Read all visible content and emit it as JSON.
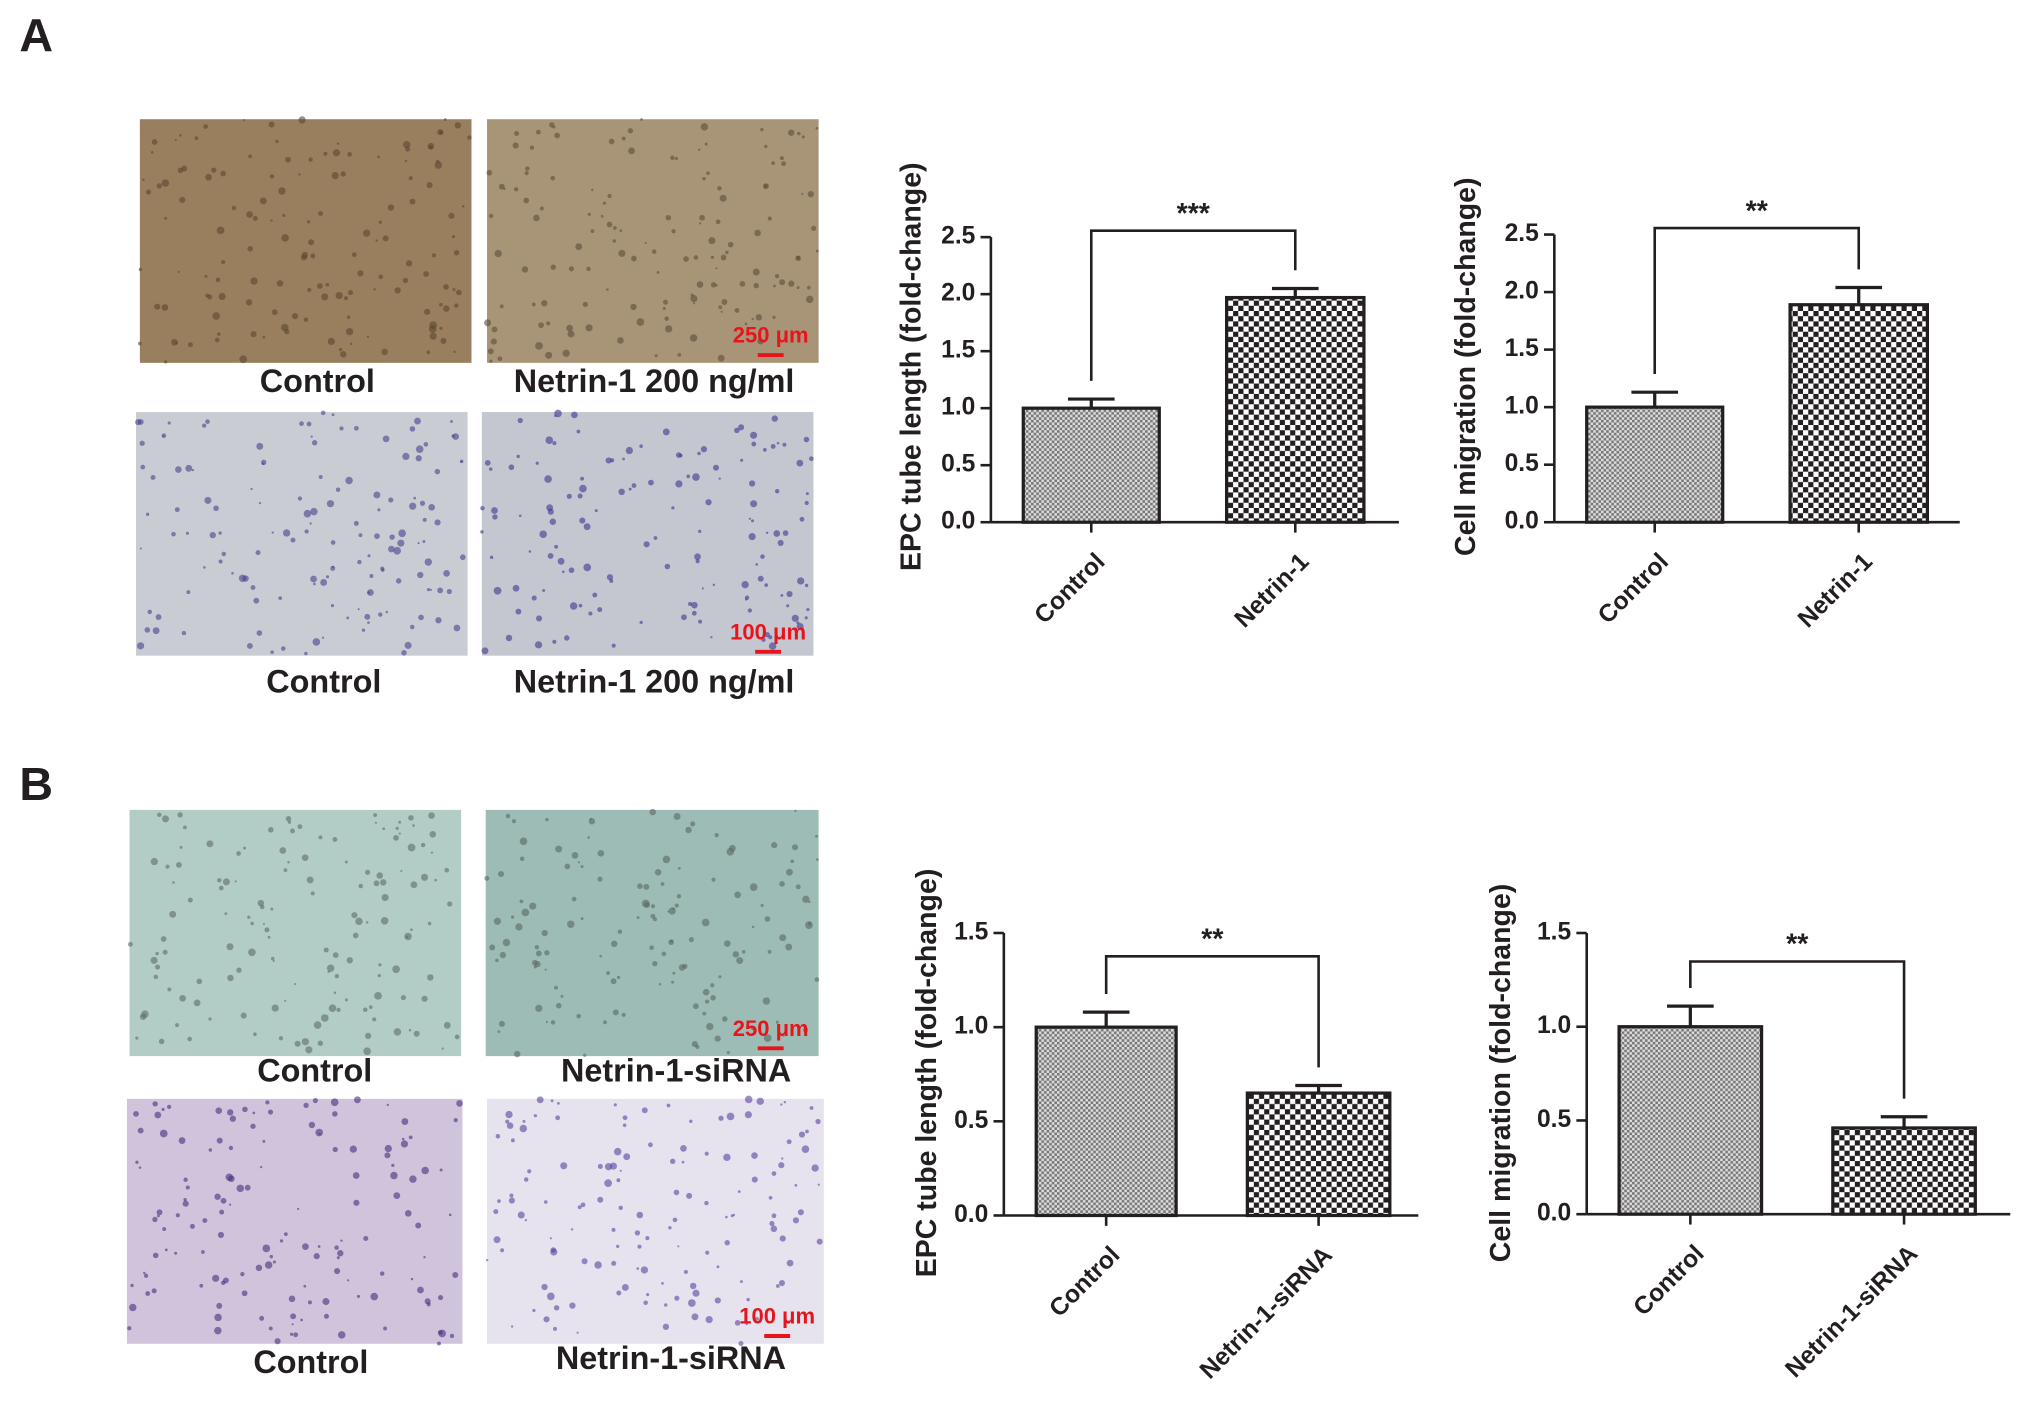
{
  "panel_labels": [
    "A",
    "B"
  ],
  "image_captions": [
    "Control",
    "Netrin-1 200 ng/ml",
    "Control",
    "Netrin-1 200 ng/ml",
    "Control",
    "Netrin-1-siRNA",
    "Control",
    "Netrin-1-siRNA"
  ],
  "scale_bars": [
    "250 μm",
    "100 μm",
    "250 μm",
    "100 μm"
  ],
  "chart_data": [
    {
      "type": "bar",
      "y_label": "EPC tube length (fold-change)",
      "categories": [
        "Control",
        "Netrin-1"
      ],
      "values": [
        1.0,
        1.97
      ],
      "errors": [
        0.08,
        0.08
      ],
      "significance": "***",
      "color": "#231f20",
      "ylim": [
        0,
        2.5
      ],
      "yticks": [
        {
          "value": 0,
          "label": "0.0"
        },
        0.5,
        {
          "value": 1,
          "label": "1.0"
        },
        1.5,
        {
          "value": 2,
          "label": "2.0"
        },
        2.5
      ]
    },
    {
      "type": "bar",
      "y_label": "Cell migration (fold-change)",
      "categories": [
        "Control",
        "Netrin-1"
      ],
      "values": [
        1.0,
        1.89
      ],
      "errors": [
        0.13,
        0.15
      ],
      "significance": "**",
      "color": "#231f20",
      "ylim": [
        0,
        2.5
      ],
      "yticks": [
        {
          "value": 0,
          "label": "0.0"
        },
        0.5,
        {
          "value": 1,
          "label": "1.0"
        },
        1.5,
        {
          "value": 2,
          "label": "2.0"
        },
        2.5
      ]
    },
    {
      "type": "bar",
      "y_label": "EPC tube length (fold-change)",
      "categories": [
        "Control",
        "Netrin-1-siRNA"
      ],
      "values": [
        1.0,
        0.65
      ],
      "errors": [
        0.08,
        0.04
      ],
      "significance": "**",
      "color": "#231f20",
      "ylim": [
        0,
        1.5
      ],
      "yticks": [
        {
          "value": 0,
          "label": "0.0"
        },
        0.5,
        {
          "value": 1,
          "label": "1.0"
        },
        1.5
      ]
    },
    {
      "type": "bar",
      "y_label": "Cell migration (fold-change)",
      "categories": [
        "Control",
        "Netrin-1-siRNA"
      ],
      "values": [
        1.0,
        0.46
      ],
      "errors": [
        0.11,
        0.06
      ],
      "significance": "**",
      "color": "#231f20",
      "ylim": [
        0,
        1.5
      ],
      "yticks": [
        {
          "value": 0,
          "label": "0.0"
        },
        0.5,
        {
          "value": 1,
          "label": "1.0"
        },
        1.5
      ]
    }
  ]
}
